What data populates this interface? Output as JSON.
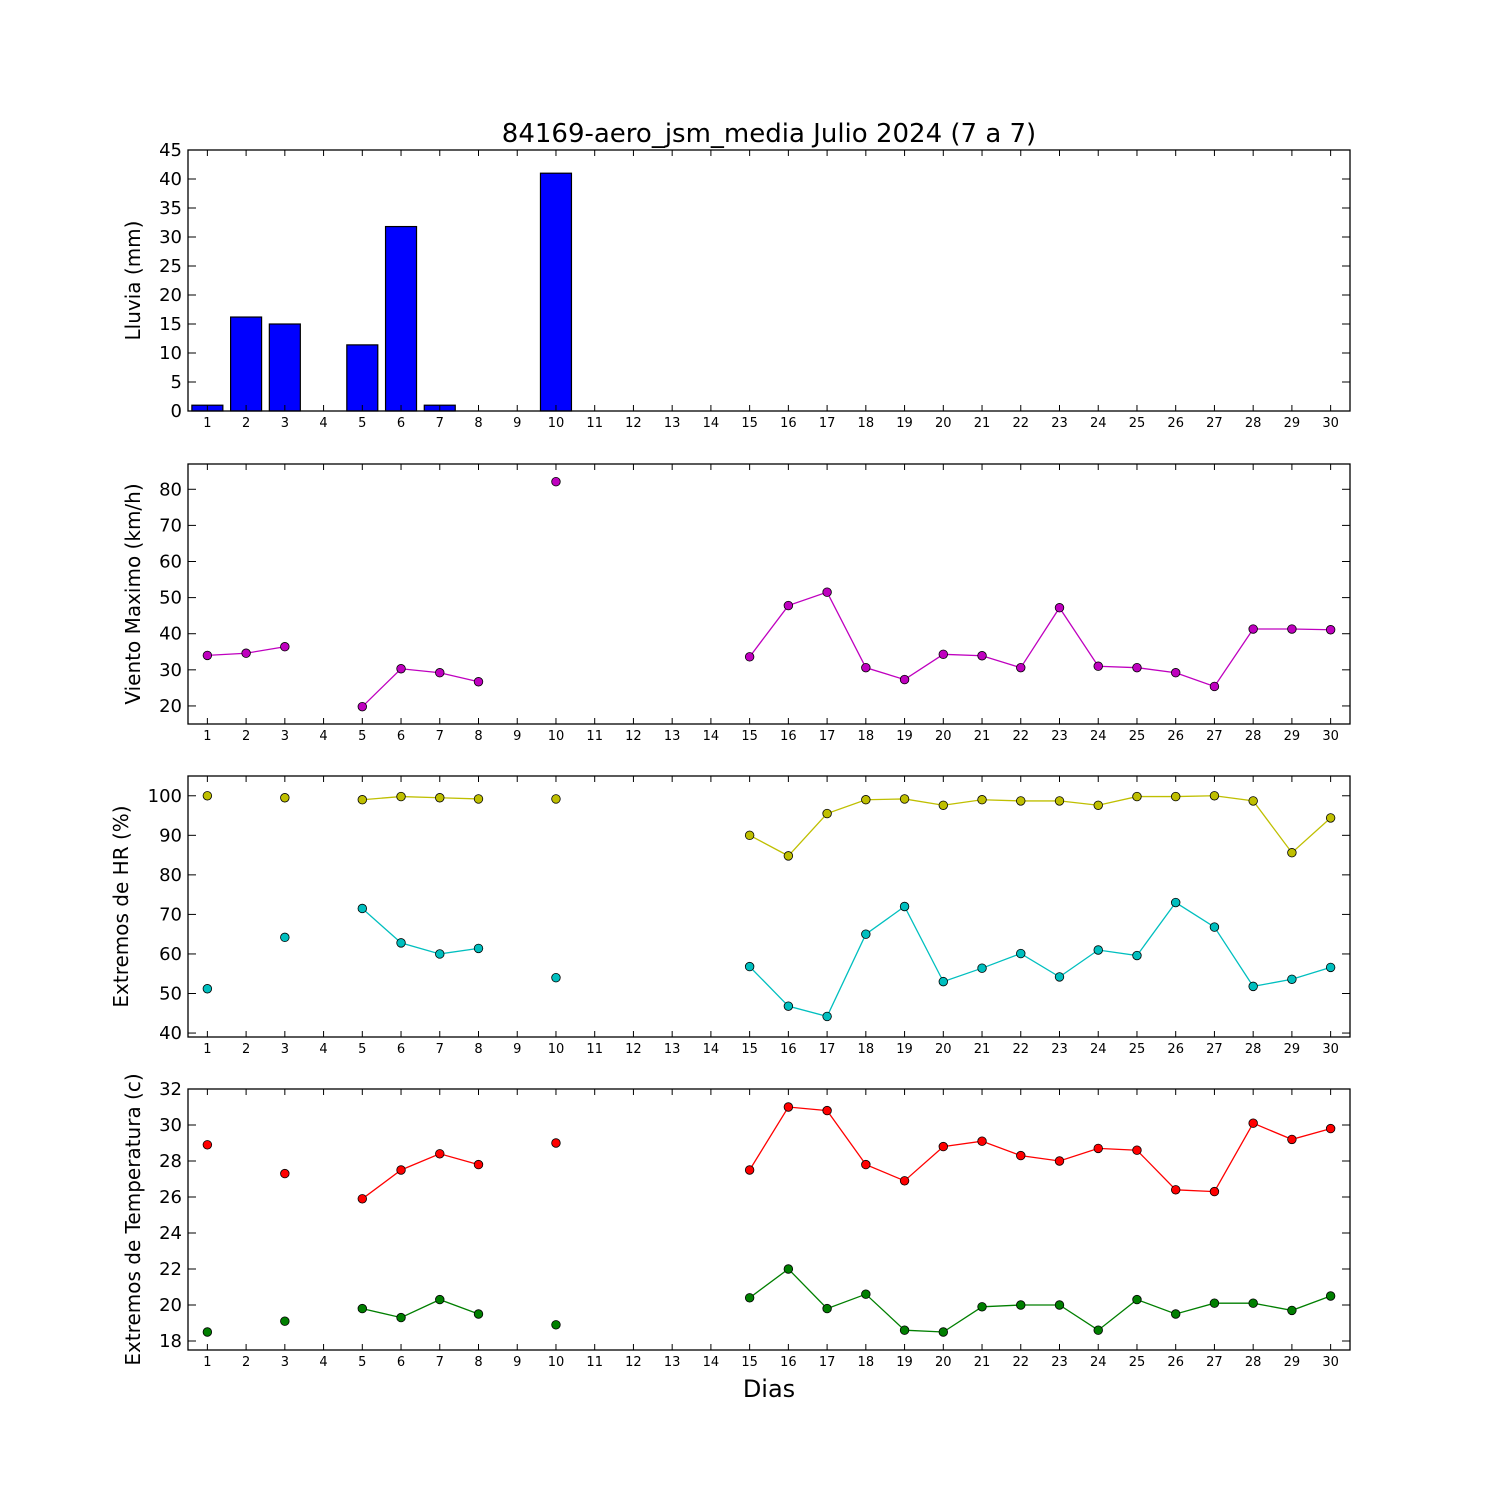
{
  "figure": {
    "title": "84169-aero_jsm_media Julio 2024  (7 a 7)",
    "xlabel": "Dias"
  },
  "chart_data": [
    {
      "type": "bar",
      "ylabel": "Lluvia (mm)",
      "ylim": [
        0,
        45
      ],
      "yticks": [
        0,
        5,
        10,
        15,
        20,
        25,
        30,
        35,
        40,
        45
      ],
      "xlim": [
        0.5,
        30.5
      ],
      "xticks": [
        1,
        2,
        3,
        4,
        5,
        6,
        7,
        8,
        9,
        10,
        11,
        12,
        13,
        14,
        15,
        16,
        17,
        18,
        19,
        20,
        21,
        22,
        23,
        24,
        25,
        26,
        27,
        28,
        29,
        30
      ],
      "series": [
        {
          "color": "#0000ff",
          "x": [
            1,
            2,
            3,
            5,
            6,
            7,
            10
          ],
          "values": [
            1.0,
            16.2,
            15.0,
            11.4,
            31.8,
            1.0,
            41.0
          ]
        }
      ]
    },
    {
      "type": "line",
      "ylabel": "Viento Maximo (km/h)",
      "ylim": [
        15,
        87
      ],
      "yticks": [
        20,
        30,
        40,
        50,
        60,
        70,
        80
      ],
      "xlim": [
        0.5,
        30.5
      ],
      "xticks": [
        1,
        2,
        3,
        4,
        5,
        6,
        7,
        8,
        9,
        10,
        11,
        12,
        13,
        14,
        15,
        16,
        17,
        18,
        19,
        20,
        21,
        22,
        23,
        24,
        25,
        26,
        27,
        28,
        29,
        30
      ],
      "series": [
        {
          "color": "#bf00bf",
          "values": [
            34.0,
            34.6,
            36.4,
            null,
            19.8,
            30.3,
            29.2,
            26.7,
            null,
            82.1,
            null,
            null,
            null,
            null,
            33.6,
            47.8,
            51.5,
            30.6,
            27.3,
            34.3,
            33.9,
            30.6,
            47.2,
            31.0,
            30.6,
            29.2,
            25.4,
            41.3,
            41.3,
            41.1
          ]
        }
      ]
    },
    {
      "type": "line",
      "ylabel": "Extremos de HR (%)",
      "ylim": [
        39,
        105
      ],
      "yticks": [
        40,
        50,
        60,
        70,
        80,
        90,
        100
      ],
      "xlim": [
        0.5,
        30.5
      ],
      "xticks": [
        1,
        2,
        3,
        4,
        5,
        6,
        7,
        8,
        9,
        10,
        11,
        12,
        13,
        14,
        15,
        16,
        17,
        18,
        19,
        20,
        21,
        22,
        23,
        24,
        25,
        26,
        27,
        28,
        29,
        30
      ],
      "series": [
        {
          "color": "#bfbf00",
          "values": [
            100,
            null,
            99.5,
            null,
            99.0,
            99.8,
            99.5,
            99.2,
            null,
            99.2,
            null,
            null,
            null,
            null,
            90.0,
            84.8,
            95.5,
            99.0,
            99.2,
            97.6,
            99.0,
            98.7,
            98.7,
            97.6,
            99.8,
            99.8,
            100,
            98.7,
            85.6,
            94.4
          ]
        },
        {
          "color": "#00bfbf",
          "values": [
            51.2,
            null,
            64.2,
            null,
            71.5,
            62.8,
            60.0,
            61.4,
            null,
            54.0,
            null,
            null,
            null,
            null,
            56.8,
            46.8,
            44.2,
            65.0,
            72.0,
            53.0,
            56.4,
            60.1,
            54.2,
            61.0,
            59.6,
            73.0,
            66.8,
            51.8,
            53.6,
            56.6
          ]
        }
      ]
    },
    {
      "type": "line",
      "ylabel": "Extremos de Temperatura (c)",
      "ylim": [
        17.5,
        32
      ],
      "yticks": [
        18,
        20,
        22,
        24,
        26,
        28,
        30,
        32
      ],
      "xlim": [
        0.5,
        30.5
      ],
      "xticks": [
        1,
        2,
        3,
        4,
        5,
        6,
        7,
        8,
        9,
        10,
        11,
        12,
        13,
        14,
        15,
        16,
        17,
        18,
        19,
        20,
        21,
        22,
        23,
        24,
        25,
        26,
        27,
        28,
        29,
        30
      ],
      "series": [
        {
          "color": "#ff0000",
          "values": [
            28.9,
            null,
            27.3,
            null,
            25.9,
            27.5,
            28.4,
            27.8,
            null,
            29.0,
            null,
            null,
            null,
            null,
            27.5,
            31.0,
            30.8,
            27.8,
            26.9,
            28.8,
            29.1,
            28.3,
            28.0,
            28.7,
            28.6,
            26.4,
            26.3,
            30.1,
            29.2,
            29.8
          ]
        },
        {
          "color": "#007f00",
          "values": [
            18.5,
            null,
            19.1,
            null,
            19.8,
            19.3,
            20.3,
            19.5,
            null,
            18.9,
            null,
            null,
            null,
            null,
            20.4,
            22.0,
            19.8,
            20.6,
            18.6,
            18.5,
            19.9,
            20.0,
            20.0,
            18.6,
            20.3,
            19.5,
            20.1,
            20.1,
            19.7,
            20.5
          ]
        }
      ]
    }
  ]
}
